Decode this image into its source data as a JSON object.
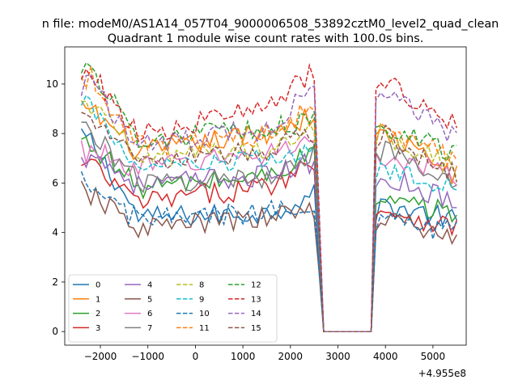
{
  "chart_data": {
    "type": "line",
    "suptitle": "n file: modeM0/AS1A14_057T04_9000006508_53892cztM0_level2_quad_clean",
    "title": "Quadrant 1 module wise count rates with 100.0s bins.",
    "xlabel": "",
    "ylabel": "",
    "x_offset_label": "+4.955e8",
    "xlim": [
      -2750,
      5700
    ],
    "ylim": [
      -0.55,
      11.5
    ],
    "x_ticks": [
      -2000,
      -1000,
      0,
      1000,
      2000,
      3000,
      4000,
      5000
    ],
    "x_tick_labels": [
      "−2000",
      "−1000",
      "0",
      "1000",
      "2000",
      "3000",
      "4000",
      "5000"
    ],
    "y_ticks": [
      0,
      2,
      4,
      6,
      8,
      10
    ],
    "y_tick_labels": [
      "0",
      "2",
      "4",
      "6",
      "8",
      "10"
    ],
    "grid": false,
    "legend_position": "lower-left",
    "legend_columns": 4,
    "x_range": [
      -2400,
      5500
    ],
    "bin_width": 100,
    "gap": [
      2650,
      3750
    ],
    "series": [
      {
        "name": "0",
        "color": "#1f77b4",
        "dash": "solid",
        "start": 7.7,
        "base": 4.6,
        "end": 4.9,
        "peak": 5.5,
        "after": 5.1,
        "aend": 4.5
      },
      {
        "name": "1",
        "color": "#ff7f0e",
        "dash": "solid",
        "start": 9.0,
        "base": 7.2,
        "end": 8.6,
        "peak": 8.7,
        "after": 8.0,
        "aend": 6.3
      },
      {
        "name": "2",
        "color": "#2ca02c",
        "dash": "solid",
        "start": 7.6,
        "base": 5.8,
        "end": 6.6,
        "peak": 7.2,
        "after": 5.2,
        "aend": 4.8
      },
      {
        "name": "3",
        "color": "#d62728",
        "dash": "solid",
        "start": 6.7,
        "base": 5.2,
        "end": 6.3,
        "peak": 6.8,
        "after": 4.9,
        "aend": 4.2
      },
      {
        "name": "4",
        "color": "#9467bd",
        "dash": "solid",
        "start": 7.2,
        "base": 5.9,
        "end": 6.6,
        "peak": 6.8,
        "after": 6.3,
        "aend": 5.2
      },
      {
        "name": "5",
        "color": "#8c564b",
        "dash": "solid",
        "start": 5.5,
        "base": 4.2,
        "end": 4.8,
        "peak": 5.0,
        "after": 4.6,
        "aend": 3.7
      },
      {
        "name": "6",
        "color": "#e377c2",
        "dash": "solid",
        "start": 7.3,
        "base": 6.6,
        "end": 7.6,
        "peak": 7.8,
        "after": 7.1,
        "aend": 6.2
      },
      {
        "name": "7",
        "color": "#7f7f7f",
        "dash": "solid",
        "start": 8.2,
        "base": 6.0,
        "end": 6.3,
        "peak": 7.3,
        "after": 7.3,
        "aend": 5.8
      },
      {
        "name": "8",
        "color": "#bcbd22",
        "dash": "dashed",
        "start": 9.2,
        "base": 7.0,
        "end": 7.6,
        "peak": 8.3,
        "after": 7.9,
        "aend": 6.6
      },
      {
        "name": "9",
        "color": "#17becf",
        "dash": "dashed",
        "start": 9.2,
        "base": 6.5,
        "end": 7.2,
        "peak": 7.4,
        "after": 6.5,
        "aend": 5.7
      },
      {
        "name": "10",
        "color": "#1f77b4",
        "dash": "dashed",
        "start": 5.8,
        "base": 4.5,
        "end": 5.0,
        "peak": 5.3,
        "after": 4.5,
        "aend": 4.0
      },
      {
        "name": "11",
        "color": "#ff7f0e",
        "dash": "dashed",
        "start": 10.3,
        "base": 7.5,
        "end": 8.2,
        "peak": 9.0,
        "after": 8.3,
        "aend": 7.0
      },
      {
        "name": "12",
        "color": "#2ca02c",
        "dash": "dashed",
        "start": 10.6,
        "base": 7.8,
        "end": 8.3,
        "peak": 8.6,
        "after": 8.3,
        "aend": 7.2
      },
      {
        "name": "13",
        "color": "#d62728",
        "dash": "dashed",
        "start": 10.5,
        "base": 7.9,
        "end": 9.8,
        "peak": 10.4,
        "after": 10.1,
        "aend": 8.4
      },
      {
        "name": "14",
        "color": "#9467bd",
        "dash": "dashed",
        "start": 10.0,
        "base": 7.6,
        "end": 8.5,
        "peak": 9.8,
        "after": 9.8,
        "aend": 7.8
      },
      {
        "name": "15",
        "color": "#8c564b",
        "dash": "dashed",
        "start": 8.6,
        "base": 6.8,
        "end": 7.6,
        "peak": 8.0,
        "after": 7.9,
        "aend": 6.3
      }
    ]
  }
}
